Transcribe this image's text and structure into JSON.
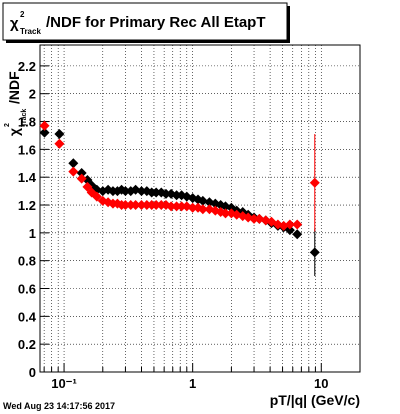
{
  "chart_data": {
    "type": "scatter",
    "title": {
      "symbol": "χ",
      "sup": "2",
      "sub": "Track",
      "rest": "/NDF for Primary Rec All EtapT"
    },
    "y_label": {
      "symbol": "χ",
      "sup": "2",
      "sub": "Track",
      "rest": "/NDF"
    },
    "x_label": "pT/|q| (GeV/c)",
    "footer": "Wed Aug 23 14:17:56 2017",
    "xlog": true,
    "grid": true,
    "marker": "diamond",
    "xlim": [
      0.065,
      20
    ],
    "ylim": [
      0,
      2.35
    ],
    "xticks": [
      {
        "value": 0.1,
        "label": "10⁻¹"
      },
      1,
      10
    ],
    "xminorticks": [
      0.07,
      0.08,
      0.09,
      0.2,
      0.3,
      0.4,
      0.5,
      0.6,
      0.7,
      0.8,
      0.9,
      2,
      3,
      4,
      5,
      6,
      7,
      8,
      9,
      20
    ],
    "yticks": [
      0,
      0.2,
      0.4,
      0.6,
      0.8,
      1,
      1.2,
      1.4,
      1.6,
      1.8,
      2,
      2.2
    ],
    "x": [
      0.0705,
      0.092,
      0.118,
      0.137,
      0.152,
      0.164,
      0.18,
      0.2,
      0.22,
      0.24,
      0.26,
      0.28,
      0.3,
      0.33,
      0.36,
      0.4,
      0.44,
      0.48,
      0.52,
      0.57,
      0.62,
      0.68,
      0.75,
      0.82,
      0.9,
      1.0,
      1.1,
      1.2,
      1.35,
      1.5,
      1.65,
      1.8,
      2.0,
      2.2,
      2.45,
      2.7,
      3.0,
      3.3,
      3.7,
      4.1,
      4.6,
      5.1,
      5.7,
      6.5,
      8.9
    ],
    "series": [
      {
        "color": "#000000",
        "values": [
          1.72,
          1.71,
          1.5,
          1.43,
          1.38,
          1.34,
          1.31,
          1.3,
          1.31,
          1.3,
          1.3,
          1.31,
          1.3,
          1.3,
          1.31,
          1.3,
          1.3,
          1.29,
          1.29,
          1.29,
          1.28,
          1.28,
          1.27,
          1.27,
          1.26,
          1.25,
          1.24,
          1.23,
          1.22,
          1.21,
          1.2,
          1.19,
          1.18,
          1.16,
          1.15,
          1.13,
          1.11,
          1.1,
          1.09,
          1.07,
          1.05,
          1.04,
          1.02,
          0.99,
          0.86
        ],
        "errors": [
          null,
          null,
          null,
          null,
          null,
          null,
          null,
          null,
          null,
          null,
          null,
          null,
          null,
          null,
          null,
          null,
          null,
          null,
          null,
          null,
          null,
          null,
          null,
          null,
          null,
          null,
          null,
          null,
          null,
          null,
          null,
          null,
          null,
          null,
          null,
          null,
          null,
          null,
          null,
          null,
          null,
          null,
          0.03,
          0.03,
          0.17
        ]
      },
      {
        "color": "#ff0000",
        "values": [
          1.77,
          1.64,
          1.44,
          1.39,
          1.33,
          1.29,
          1.26,
          1.23,
          1.22,
          1.21,
          1.21,
          1.2,
          1.2,
          1.2,
          1.2,
          1.2,
          1.2,
          1.2,
          1.2,
          1.2,
          1.2,
          1.19,
          1.19,
          1.19,
          1.19,
          1.18,
          1.18,
          1.17,
          1.17,
          1.16,
          1.15,
          1.14,
          1.14,
          1.13,
          1.12,
          1.11,
          1.1,
          1.1,
          1.09,
          1.08,
          1.06,
          1.05,
          1.06,
          1.06,
          1.36
        ],
        "errors": [
          null,
          null,
          null,
          null,
          null,
          null,
          null,
          null,
          null,
          null,
          null,
          null,
          null,
          null,
          null,
          null,
          null,
          null,
          null,
          null,
          null,
          null,
          null,
          null,
          null,
          null,
          null,
          null,
          null,
          null,
          null,
          null,
          null,
          null,
          null,
          null,
          null,
          null,
          null,
          null,
          null,
          null,
          0.03,
          0.03,
          0.35
        ]
      }
    ]
  }
}
